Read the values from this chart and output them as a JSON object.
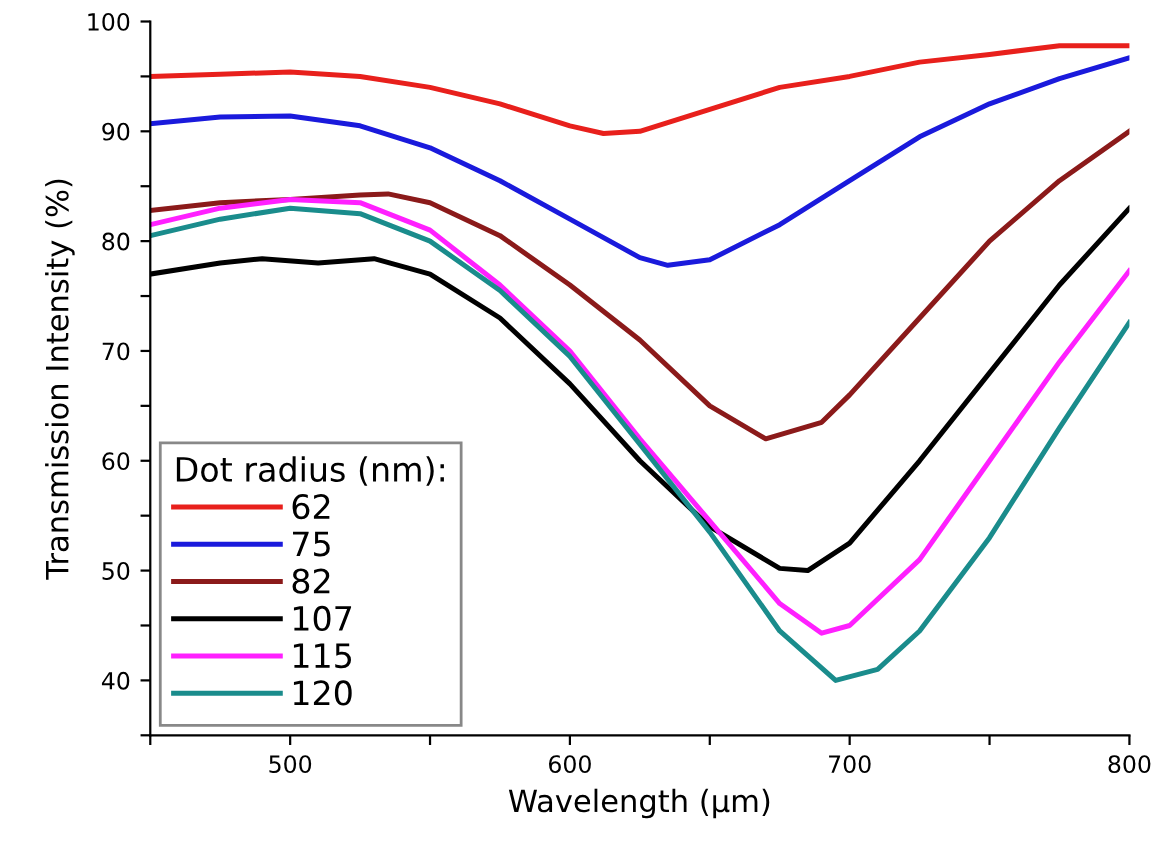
{
  "chart_data": {
    "type": "line",
    "xlabel": "Wavelength (μm)",
    "ylabel": "Transmission Intensity (%)",
    "legend_title": "Dot radius (nm):",
    "xlim": [
      450,
      800
    ],
    "ylim": [
      35,
      100
    ],
    "xticks": [
      {
        "value": 450,
        "label": null
      },
      500,
      {
        "value": 550,
        "label": null
      },
      600,
      {
        "value": 650,
        "label": null
      },
      700,
      {
        "value": 750,
        "label": null
      },
      800
    ],
    "yticks": [
      {
        "value": 35,
        "label": null
      },
      40,
      {
        "value": 45,
        "label": null
      },
      50,
      {
        "value": 55,
        "label": null
      },
      60,
      {
        "value": 65,
        "label": null
      },
      70,
      {
        "value": 75,
        "label": null
      },
      80,
      {
        "value": 85,
        "label": null
      },
      90,
      {
        "value": 95,
        "label": null
      },
      100
    ],
    "grid": false,
    "legend": "bottom left",
    "line_style": "solid",
    "marker": "none",
    "series": [
      {
        "name": "62",
        "color": "#e8201c",
        "x": [
          450,
          475,
          500,
          525,
          550,
          575,
          600,
          612,
          625,
          650,
          675,
          700,
          725,
          750,
          775,
          800
        ],
        "values": [
          95,
          95.2,
          95.4,
          95,
          94,
          92.5,
          90.5,
          89.8,
          90,
          92,
          94,
          95,
          96.3,
          97,
          97.8,
          97.8
        ]
      },
      {
        "name": "75",
        "color": "#1a1adc",
        "x": [
          450,
          475,
          500,
          525,
          550,
          575,
          600,
          625,
          635,
          650,
          675,
          700,
          725,
          750,
          775,
          800
        ],
        "values": [
          90.7,
          91.3,
          91.4,
          90.5,
          88.5,
          85.5,
          82,
          78.5,
          77.8,
          78.3,
          81.5,
          85.5,
          89.5,
          92.5,
          94.8,
          96.7
        ]
      },
      {
        "name": "82",
        "color": "#8b1a1a",
        "x": [
          450,
          475,
          500,
          525,
          535,
          550,
          575,
          600,
          625,
          650,
          670,
          690,
          700,
          725,
          750,
          775,
          800
        ],
        "values": [
          82.8,
          83.5,
          83.8,
          84.2,
          84.3,
          83.5,
          80.5,
          76,
          71,
          65,
          62,
          63.5,
          66,
          73,
          80,
          85.5,
          90
        ]
      },
      {
        "name": "107",
        "color": "#000000",
        "x": [
          450,
          475,
          490,
          510,
          530,
          550,
          575,
          600,
          625,
          650,
          675,
          685,
          700,
          725,
          750,
          775,
          800
        ],
        "values": [
          77,
          78,
          78.4,
          78,
          78.4,
          77,
          73,
          67,
          60,
          54,
          50.2,
          50,
          52.5,
          60,
          68,
          76,
          83
        ]
      },
      {
        "name": "115",
        "color": "#ff20ff",
        "x": [
          450,
          475,
          500,
          525,
          550,
          575,
          600,
          625,
          650,
          675,
          690,
          700,
          725,
          750,
          775,
          800
        ],
        "values": [
          81.5,
          83,
          83.8,
          83.5,
          81,
          76,
          70,
          62,
          54.5,
          47,
          44.3,
          45,
          51,
          60,
          69,
          77.3
        ]
      },
      {
        "name": "120",
        "color": "#1a8c8c",
        "x": [
          450,
          475,
          500,
          525,
          550,
          575,
          600,
          625,
          650,
          675,
          695,
          710,
          725,
          750,
          775,
          800
        ],
        "values": [
          80.5,
          82,
          83,
          82.5,
          80,
          75.5,
          69.5,
          61.5,
          53.5,
          44.5,
          40,
          41,
          44.5,
          53,
          63,
          72.6
        ]
      }
    ]
  }
}
